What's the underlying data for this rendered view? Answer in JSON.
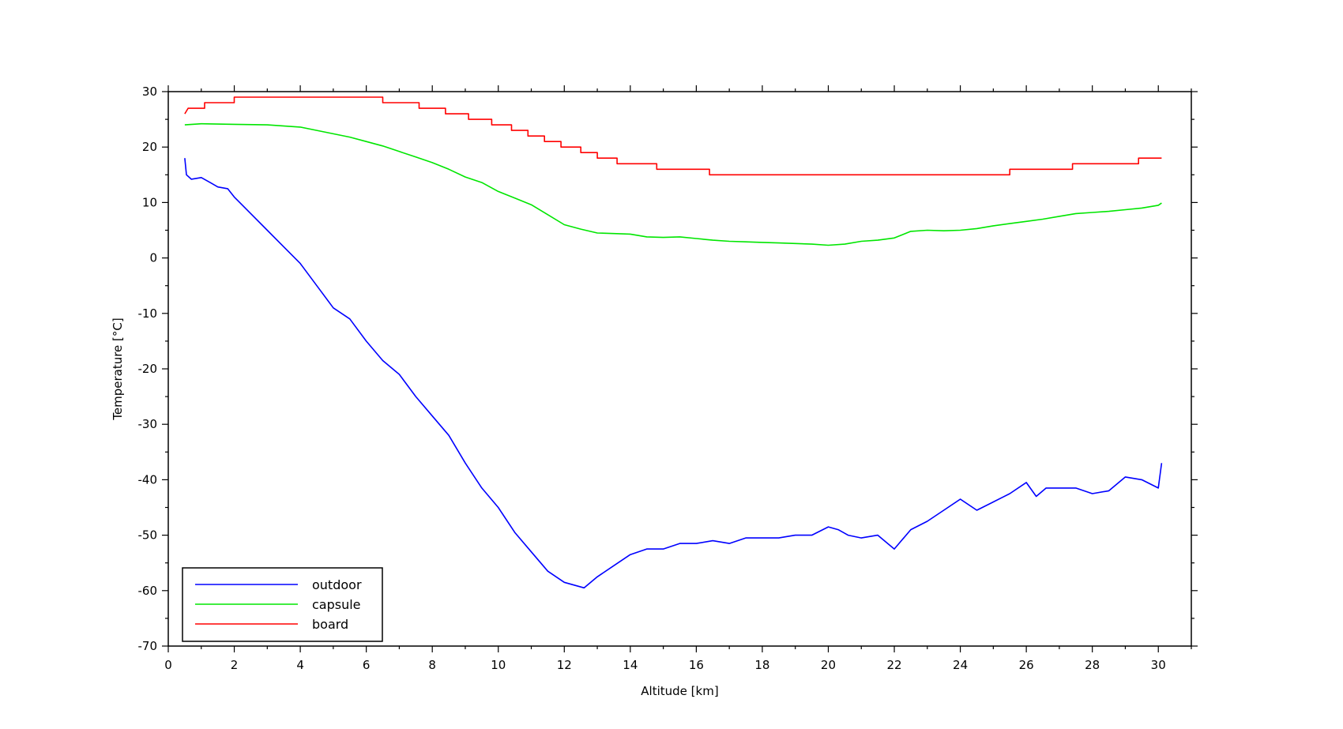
{
  "chart_data": {
    "type": "line",
    "xlabel": "Altitude [km]",
    "ylabel": "Temperature [°C]",
    "xlim": [
      0,
      31
    ],
    "ylim": [
      -70,
      30
    ],
    "x_ticks": [
      0,
      2,
      4,
      6,
      8,
      10,
      12,
      14,
      16,
      18,
      20,
      22,
      24,
      26,
      28,
      30
    ],
    "y_ticks": [
      -70,
      -60,
      -50,
      -40,
      -30,
      -20,
      -10,
      0,
      10,
      20,
      30
    ],
    "grid": false,
    "legend_position": "bottom-left",
    "series": [
      {
        "name": "outdoor",
        "color": "#0000ff",
        "points": [
          [
            0.5,
            18
          ],
          [
            0.55,
            15
          ],
          [
            0.7,
            14.2
          ],
          [
            1.0,
            14.5
          ],
          [
            1.3,
            13.5
          ],
          [
            1.5,
            12.8
          ],
          [
            1.8,
            12.5
          ],
          [
            2.0,
            11
          ],
          [
            2.5,
            8
          ],
          [
            3.0,
            5
          ],
          [
            3.5,
            2
          ],
          [
            4.0,
            -1
          ],
          [
            4.5,
            -5
          ],
          [
            5.0,
            -9
          ],
          [
            5.5,
            -11
          ],
          [
            6.0,
            -15
          ],
          [
            6.5,
            -18.5
          ],
          [
            7.0,
            -21
          ],
          [
            7.5,
            -25
          ],
          [
            8.0,
            -28.5
          ],
          [
            8.5,
            -32
          ],
          [
            9.0,
            -37
          ],
          [
            9.5,
            -41.5
          ],
          [
            10.0,
            -45
          ],
          [
            10.5,
            -49.5
          ],
          [
            11.0,
            -53
          ],
          [
            11.5,
            -56.5
          ],
          [
            12.0,
            -58.5
          ],
          [
            12.3,
            -59
          ],
          [
            12.6,
            -59.5
          ],
          [
            13.0,
            -57.5
          ],
          [
            13.5,
            -55.5
          ],
          [
            14.0,
            -53.5
          ],
          [
            14.5,
            -52.5
          ],
          [
            15.0,
            -52.5
          ],
          [
            15.5,
            -51.5
          ],
          [
            16.0,
            -51.5
          ],
          [
            16.5,
            -51
          ],
          [
            17.0,
            -51.5
          ],
          [
            17.5,
            -50.5
          ],
          [
            18.0,
            -50.5
          ],
          [
            18.5,
            -50.5
          ],
          [
            19.0,
            -50
          ],
          [
            19.5,
            -50
          ],
          [
            20.0,
            -48.5
          ],
          [
            20.3,
            -49
          ],
          [
            20.6,
            -50
          ],
          [
            21.0,
            -50.5
          ],
          [
            21.5,
            -50
          ],
          [
            22.0,
            -52.5
          ],
          [
            22.5,
            -49
          ],
          [
            23.0,
            -47.5
          ],
          [
            23.5,
            -45.5
          ],
          [
            24.0,
            -43.5
          ],
          [
            24.5,
            -45.5
          ],
          [
            25.0,
            -44
          ],
          [
            25.5,
            -42.5
          ],
          [
            26.0,
            -40.5
          ],
          [
            26.3,
            -43
          ],
          [
            26.6,
            -41.5
          ],
          [
            27.0,
            -41.5
          ],
          [
            27.5,
            -41.5
          ],
          [
            28.0,
            -42.5
          ],
          [
            28.5,
            -42
          ],
          [
            29.0,
            -39.5
          ],
          [
            29.5,
            -40
          ],
          [
            30.0,
            -41.5
          ],
          [
            30.1,
            -37
          ]
        ]
      },
      {
        "name": "capsule",
        "color": "#00e600",
        "points": [
          [
            0.5,
            24
          ],
          [
            1.0,
            24.2
          ],
          [
            2.0,
            24.1
          ],
          [
            3.0,
            24
          ],
          [
            4.0,
            23.6
          ],
          [
            4.5,
            23
          ],
          [
            5.0,
            22.4
          ],
          [
            5.5,
            21.8
          ],
          [
            6.0,
            21
          ],
          [
            6.5,
            20.2
          ],
          [
            7.0,
            19.2
          ],
          [
            7.5,
            18.2
          ],
          [
            8.0,
            17.2
          ],
          [
            8.5,
            16
          ],
          [
            9.0,
            14.6
          ],
          [
            9.5,
            13.6
          ],
          [
            10.0,
            12
          ],
          [
            10.5,
            10.8
          ],
          [
            11.0,
            9.6
          ],
          [
            11.5,
            7.8
          ],
          [
            12.0,
            6
          ],
          [
            12.5,
            5.2
          ],
          [
            13.0,
            4.5
          ],
          [
            13.5,
            4.4
          ],
          [
            14.0,
            4.3
          ],
          [
            14.5,
            3.8
          ],
          [
            15.0,
            3.7
          ],
          [
            15.5,
            3.8
          ],
          [
            16.0,
            3.5
          ],
          [
            16.5,
            3.2
          ],
          [
            17.0,
            3
          ],
          [
            17.5,
            2.9
          ],
          [
            18.0,
            2.8
          ],
          [
            18.5,
            2.7
          ],
          [
            19.0,
            2.6
          ],
          [
            19.5,
            2.5
          ],
          [
            20.0,
            2.3
          ],
          [
            20.5,
            2.5
          ],
          [
            21.0,
            3
          ],
          [
            21.5,
            3.2
          ],
          [
            22.0,
            3.6
          ],
          [
            22.5,
            4.8
          ],
          [
            23.0,
            5
          ],
          [
            23.5,
            4.9
          ],
          [
            24.0,
            5
          ],
          [
            24.5,
            5.3
          ],
          [
            25.0,
            5.8
          ],
          [
            25.5,
            6.2
          ],
          [
            26.0,
            6.6
          ],
          [
            26.5,
            7
          ],
          [
            27.0,
            7.5
          ],
          [
            27.5,
            8
          ],
          [
            28.0,
            8.2
          ],
          [
            28.5,
            8.4
          ],
          [
            29.0,
            8.7
          ],
          [
            29.5,
            9
          ],
          [
            30.0,
            9.5
          ],
          [
            30.1,
            9.9
          ]
        ]
      },
      {
        "name": "board",
        "color": "#ff0000",
        "points": [
          [
            0.5,
            26
          ],
          [
            0.6,
            27
          ],
          [
            1.1,
            27
          ],
          [
            1.1,
            28
          ],
          [
            2.0,
            28
          ],
          [
            2.0,
            29
          ],
          [
            6.5,
            29
          ],
          [
            6.5,
            28
          ],
          [
            7.6,
            28
          ],
          [
            7.6,
            27
          ],
          [
            8.4,
            27
          ],
          [
            8.4,
            26
          ],
          [
            9.1,
            26
          ],
          [
            9.1,
            25
          ],
          [
            9.8,
            25
          ],
          [
            9.8,
            24
          ],
          [
            10.4,
            24
          ],
          [
            10.4,
            23
          ],
          [
            10.9,
            23
          ],
          [
            10.9,
            22
          ],
          [
            11.4,
            22
          ],
          [
            11.4,
            21
          ],
          [
            11.9,
            21
          ],
          [
            11.9,
            20
          ],
          [
            12.5,
            20
          ],
          [
            12.5,
            19
          ],
          [
            13.0,
            19
          ],
          [
            13.0,
            18
          ],
          [
            13.6,
            18
          ],
          [
            13.6,
            17
          ],
          [
            14.8,
            17
          ],
          [
            14.8,
            16
          ],
          [
            16.4,
            16
          ],
          [
            16.4,
            15
          ],
          [
            25.5,
            15
          ],
          [
            25.5,
            16
          ],
          [
            27.4,
            16
          ],
          [
            27.4,
            17
          ],
          [
            29.4,
            17
          ],
          [
            29.4,
            18
          ],
          [
            30.1,
            18
          ]
        ]
      }
    ]
  }
}
